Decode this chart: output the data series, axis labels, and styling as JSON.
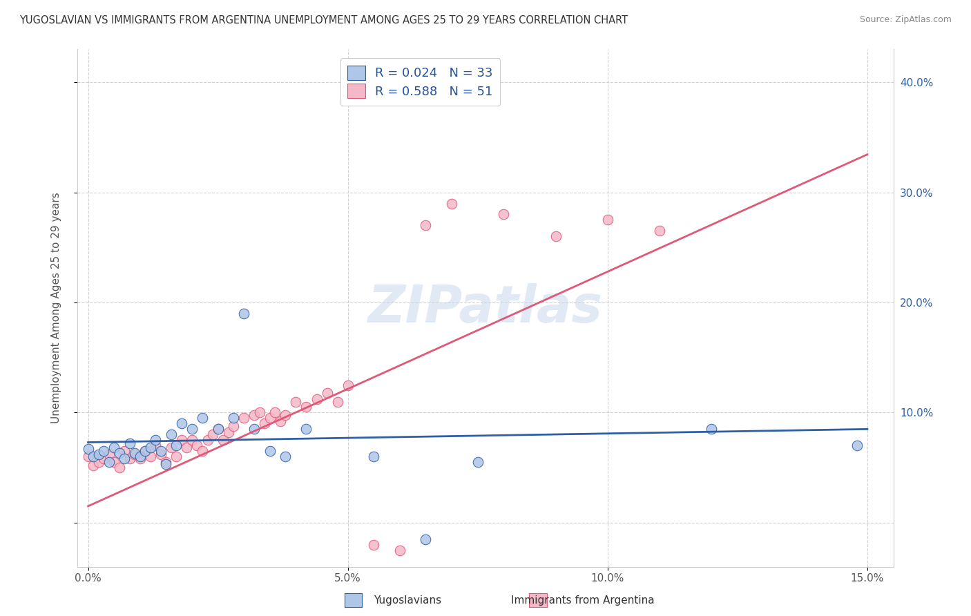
{
  "title": "YUGOSLAVIAN VS IMMIGRANTS FROM ARGENTINA UNEMPLOYMENT AMONG AGES 25 TO 29 YEARS CORRELATION CHART",
  "source": "Source: ZipAtlas.com",
  "ylabel": "Unemployment Among Ages 25 to 29 years",
  "xlabel_yugoslavians": "Yugoslavians",
  "xlabel_argentina": "Immigrants from Argentina",
  "xlim": [
    -0.002,
    0.155
  ],
  "ylim": [
    -0.04,
    0.43
  ],
  "xticks": [
    0.0,
    0.05,
    0.1,
    0.15
  ],
  "xticklabels": [
    "0.0%",
    "5.0%",
    "10.0%",
    "15.0%"
  ],
  "yticks": [
    0.0,
    0.1,
    0.2,
    0.3,
    0.4
  ],
  "yticklabels_right": [
    "",
    "10.0%",
    "20.0%",
    "30.0%",
    "40.0%"
  ],
  "R_yug": 0.024,
  "N_yug": 33,
  "R_arg": 0.588,
  "N_arg": 51,
  "color_yug": "#aec6e8",
  "color_arg": "#f4b8c8",
  "line_color_yug": "#2e5fa3",
  "line_color_arg": "#e05878",
  "watermark": "ZIPatlas",
  "yug_scatter_x": [
    0.0,
    0.001,
    0.002,
    0.003,
    0.004,
    0.005,
    0.006,
    0.007,
    0.008,
    0.009,
    0.01,
    0.011,
    0.012,
    0.013,
    0.014,
    0.015,
    0.016,
    0.017,
    0.018,
    0.02,
    0.022,
    0.025,
    0.028,
    0.03,
    0.032,
    0.035,
    0.038,
    0.042,
    0.055,
    0.065,
    0.075,
    0.12,
    0.148
  ],
  "yug_scatter_y": [
    0.067,
    0.06,
    0.062,
    0.065,
    0.055,
    0.068,
    0.063,
    0.058,
    0.072,
    0.063,
    0.06,
    0.065,
    0.068,
    0.075,
    0.065,
    0.053,
    0.08,
    0.07,
    0.09,
    0.085,
    0.095,
    0.085,
    0.095,
    0.19,
    0.085,
    0.065,
    0.06,
    0.085,
    0.06,
    -0.015,
    0.055,
    0.085,
    0.07
  ],
  "arg_scatter_x": [
    0.0,
    0.001,
    0.002,
    0.003,
    0.004,
    0.005,
    0.006,
    0.007,
    0.008,
    0.009,
    0.01,
    0.011,
    0.012,
    0.013,
    0.014,
    0.015,
    0.016,
    0.017,
    0.018,
    0.019,
    0.02,
    0.021,
    0.022,
    0.023,
    0.024,
    0.025,
    0.026,
    0.027,
    0.028,
    0.03,
    0.032,
    0.033,
    0.034,
    0.035,
    0.036,
    0.037,
    0.038,
    0.04,
    0.042,
    0.044,
    0.046,
    0.048,
    0.05,
    0.055,
    0.06,
    0.065,
    0.07,
    0.08,
    0.09,
    0.1,
    0.11
  ],
  "arg_scatter_y": [
    0.06,
    0.052,
    0.055,
    0.058,
    0.062,
    0.055,
    0.05,
    0.065,
    0.058,
    0.062,
    0.058,
    0.065,
    0.06,
    0.07,
    0.062,
    0.055,
    0.068,
    0.06,
    0.075,
    0.068,
    0.075,
    0.07,
    0.065,
    0.075,
    0.08,
    0.085,
    0.075,
    0.082,
    0.088,
    0.095,
    0.098,
    0.1,
    0.09,
    0.095,
    0.1,
    0.092,
    0.098,
    0.11,
    0.105,
    0.112,
    0.118,
    0.11,
    0.125,
    -0.02,
    -0.025,
    0.27,
    0.29,
    0.28,
    0.26,
    0.275,
    0.265
  ],
  "background_color": "#ffffff",
  "grid_color": "#cccccc",
  "legend_text_color": "#2855a0"
}
